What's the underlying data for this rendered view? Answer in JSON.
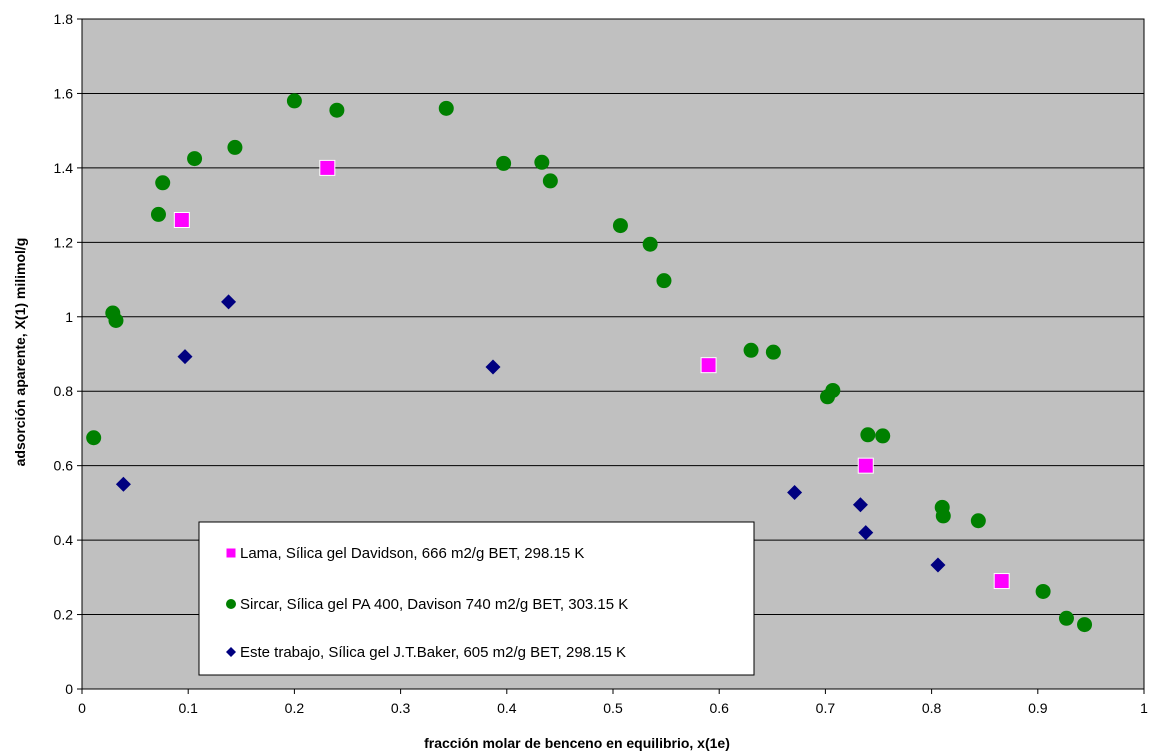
{
  "chart_data": {
    "type": "scatter",
    "title": "",
    "xlabel": "fracción molar de benceno en equilibrio, x(1e)",
    "ylabel": "adsorción aparente, X(1)  milimol/g",
    "xlim": [
      0,
      1
    ],
    "ylim": [
      0,
      1.8
    ],
    "xticks": [
      0,
      0.1,
      0.2,
      0.3,
      0.4,
      0.5,
      0.6,
      0.7,
      0.8,
      0.9,
      1
    ],
    "yticks": [
      0,
      0.2,
      0.4,
      0.6,
      0.8,
      1,
      1.2,
      1.4,
      1.6,
      1.8
    ],
    "xtick_labels": [
      "0",
      "0.1",
      "0.2",
      "0.3",
      "0.4",
      "0.5",
      "0.6",
      "0.7",
      "0.8",
      "0.9",
      "1"
    ],
    "ytick_labels": [
      "0",
      "0.2",
      "0.4",
      "0.6",
      "0.8",
      "1",
      "1.2",
      "1.4",
      "1.6",
      "1.8"
    ],
    "grid": "horizontal",
    "plot_background": "#c0c0c0",
    "legend_position": "bottom-left inside plot",
    "series": [
      {
        "name": "Lama, Sílica gel Davidson, 666 m2/g BET, 298.15 K",
        "marker": "square",
        "color": "#ff00ff",
        "x": [
          0.094,
          0.231,
          0.59,
          0.738,
          0.866
        ],
        "y": [
          1.26,
          1.4,
          0.87,
          0.6,
          0.29
        ]
      },
      {
        "name": "Sircar, Sílica gel PA 400, Davison 740 m2/g BET, 303.15 K",
        "marker": "circle",
        "color": "#008000",
        "x": [
          0.011,
          0.029,
          0.032,
          0.072,
          0.076,
          0.106,
          0.144,
          0.2,
          0.24,
          0.343,
          0.397,
          0.433,
          0.441,
          0.507,
          0.535,
          0.548,
          0.63,
          0.651,
          0.702,
          0.707,
          0.74,
          0.754,
          0.81,
          0.811,
          0.844,
          0.905,
          0.927,
          0.944
        ],
        "y": [
          0.675,
          1.01,
          0.99,
          1.275,
          1.36,
          1.425,
          1.455,
          1.58,
          1.555,
          1.56,
          1.412,
          1.415,
          1.365,
          1.245,
          1.195,
          1.097,
          0.91,
          0.905,
          0.785,
          0.802,
          0.683,
          0.68,
          0.488,
          0.465,
          0.452,
          0.262,
          0.19,
          0.173
        ]
      },
      {
        "name": "Este trabajo, Sílica gel J.T.Baker, 605 m2/g BET, 298.15 K",
        "marker": "diamond",
        "color": "#000080",
        "x": [
          0.039,
          0.097,
          0.138,
          0.387,
          0.671,
          0.733,
          0.738,
          0.806
        ],
        "y": [
          0.55,
          0.893,
          1.04,
          0.865,
          0.528,
          0.495,
          0.42,
          0.333
        ]
      }
    ]
  }
}
